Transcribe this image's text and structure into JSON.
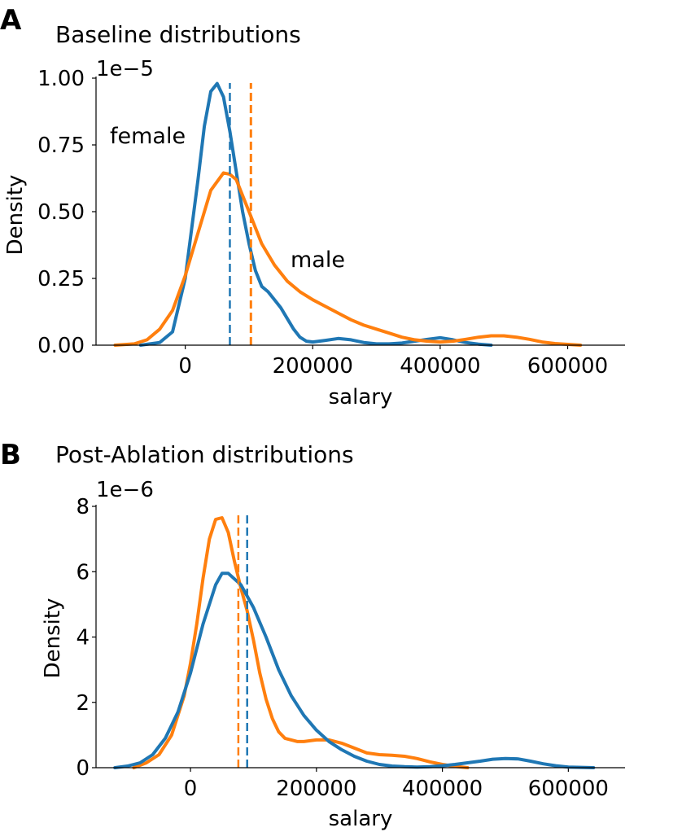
{
  "colors": {
    "female": "#1f77b4",
    "male": "#ff7f0e"
  },
  "chart_data": [
    {
      "type": "line",
      "panel_letter": "A",
      "title": "Baseline distributions",
      "xlabel": "salary",
      "ylabel": "Density",
      "y_exponent_label": "1e−5",
      "y_scale": 1e-05,
      "xlim": [
        -140000,
        690000
      ],
      "ylim": [
        0,
        1.0
      ],
      "xticks": [
        0,
        200000,
        400000,
        600000
      ],
      "xtick_labels": [
        "0",
        "200000",
        "400000",
        "600000"
      ],
      "yticks": [
        0,
        0.25,
        0.5,
        0.75,
        1.0
      ],
      "ytick_labels": [
        "0.00",
        "0.25",
        "0.50",
        "0.75",
        "1.00"
      ],
      "annotations": [
        {
          "series": "female",
          "text": "female"
        },
        {
          "series": "male",
          "text": "male"
        }
      ],
      "series": [
        {
          "name": "female",
          "color_key": "female",
          "mean": 70000,
          "x": [
            -70000,
            -40000,
            -20000,
            0,
            20000,
            30000,
            40000,
            50000,
            60000,
            70000,
            80000,
            90000,
            100000,
            110000,
            120000,
            130000,
            140000,
            150000,
            160000,
            170000,
            180000,
            190000,
            200000,
            220000,
            240000,
            260000,
            280000,
            300000,
            320000,
            340000,
            360000,
            380000,
            400000,
            420000,
            440000,
            460000,
            480000
          ],
          "y": [
            0.0,
            0.01,
            0.05,
            0.25,
            0.62,
            0.82,
            0.95,
            0.98,
            0.93,
            0.8,
            0.65,
            0.5,
            0.38,
            0.28,
            0.22,
            0.2,
            0.17,
            0.14,
            0.1,
            0.06,
            0.03,
            0.015,
            0.012,
            0.018,
            0.025,
            0.02,
            0.01,
            0.005,
            0.005,
            0.008,
            0.015,
            0.022,
            0.028,
            0.02,
            0.01,
            0.004,
            0.0
          ]
        },
        {
          "name": "male",
          "color_key": "male",
          "mean": 103000,
          "x": [
            -110000,
            -80000,
            -60000,
            -40000,
            -20000,
            0,
            20000,
            40000,
            60000,
            70000,
            80000,
            100000,
            120000,
            140000,
            160000,
            180000,
            200000,
            220000,
            240000,
            260000,
            280000,
            300000,
            320000,
            340000,
            360000,
            380000,
            400000,
            420000,
            440000,
            460000,
            480000,
            500000,
            520000,
            540000,
            560000,
            580000,
            600000,
            620000
          ],
          "y": [
            0.0,
            0.005,
            0.02,
            0.06,
            0.13,
            0.26,
            0.42,
            0.58,
            0.645,
            0.64,
            0.62,
            0.5,
            0.38,
            0.3,
            0.24,
            0.2,
            0.17,
            0.145,
            0.12,
            0.095,
            0.075,
            0.06,
            0.045,
            0.03,
            0.02,
            0.015,
            0.012,
            0.015,
            0.022,
            0.03,
            0.035,
            0.035,
            0.03,
            0.022,
            0.012,
            0.006,
            0.003,
            0.0
          ]
        }
      ]
    },
    {
      "type": "line",
      "panel_letter": "B",
      "title": "Post-Ablation distributions",
      "xlabel": "salary",
      "ylabel": "Density",
      "y_exponent_label": "1e−6",
      "y_scale": 1e-06,
      "xlim": [
        -150000,
        690000
      ],
      "ylim": [
        0,
        8.0
      ],
      "xticks": [
        0,
        200000,
        400000,
        600000
      ],
      "xtick_labels": [
        "0",
        "200000",
        "400000",
        "600000"
      ],
      "yticks": [
        0,
        2,
        4,
        6,
        8
      ],
      "ytick_labels": [
        "0",
        "2",
        "4",
        "6",
        "8"
      ],
      "annotations": [],
      "series": [
        {
          "name": "male",
          "color_key": "male",
          "mean": 76000,
          "x": [
            -90000,
            -70000,
            -50000,
            -30000,
            -10000,
            0,
            10000,
            20000,
            30000,
            40000,
            50000,
            60000,
            70000,
            80000,
            90000,
            100000,
            110000,
            120000,
            130000,
            140000,
            150000,
            160000,
            170000,
            180000,
            200000,
            220000,
            240000,
            260000,
            280000,
            300000,
            320000,
            340000,
            360000,
            380000,
            400000,
            420000,
            440000
          ],
          "y": [
            0.0,
            0.15,
            0.4,
            1.0,
            2.2,
            3.2,
            4.4,
            5.8,
            7.0,
            7.6,
            7.65,
            7.2,
            6.3,
            5.5,
            4.8,
            3.9,
            2.9,
            2.1,
            1.5,
            1.1,
            0.9,
            0.85,
            0.8,
            0.8,
            0.85,
            0.85,
            0.75,
            0.6,
            0.45,
            0.4,
            0.38,
            0.35,
            0.28,
            0.18,
            0.1,
            0.04,
            0.0
          ]
        },
        {
          "name": "female",
          "color_key": "female",
          "mean": 90000,
          "x": [
            -120000,
            -100000,
            -80000,
            -60000,
            -40000,
            -20000,
            0,
            20000,
            40000,
            50000,
            60000,
            80000,
            100000,
            120000,
            140000,
            160000,
            180000,
            200000,
            220000,
            240000,
            260000,
            280000,
            300000,
            320000,
            340000,
            360000,
            380000,
            400000,
            420000,
            440000,
            460000,
            480000,
            500000,
            520000,
            540000,
            560000,
            580000,
            600000,
            640000
          ],
          "y": [
            0.0,
            0.05,
            0.15,
            0.4,
            0.9,
            1.7,
            2.9,
            4.4,
            5.6,
            5.95,
            5.95,
            5.6,
            4.9,
            4.0,
            3.0,
            2.2,
            1.6,
            1.15,
            0.8,
            0.55,
            0.35,
            0.2,
            0.1,
            0.05,
            0.03,
            0.02,
            0.03,
            0.06,
            0.1,
            0.15,
            0.2,
            0.26,
            0.28,
            0.27,
            0.2,
            0.12,
            0.06,
            0.02,
            0.0
          ]
        }
      ]
    }
  ]
}
